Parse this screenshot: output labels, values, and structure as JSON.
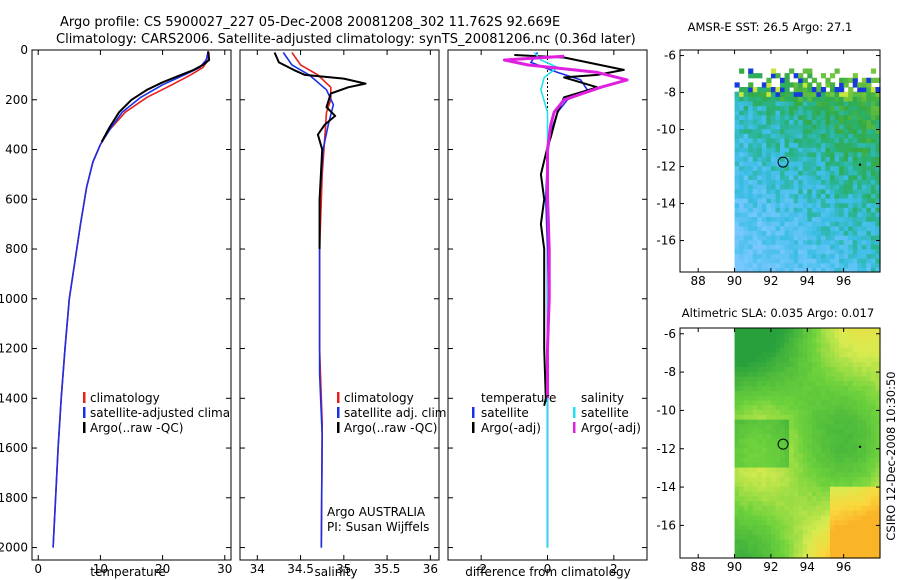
{
  "header": {
    "line1": "Argo profile: CS 5900027_227 05-Dec-2008 20081208_302 11.762S 92.669E",
    "line2": "Climatology: CARS2006. Satellite-adjusted climatology: synTS_20081206.nc (0.36d later)"
  },
  "colors": {
    "climatology": "#e8201c",
    "satellite": "#1c2fe8",
    "argo": "#000000",
    "salinity_satellite": "#22e0f0",
    "salinity_argo": "#e020e0"
  },
  "side_label": "CSIRO 12-Dec-2008 10:30:50",
  "chart_data": [
    {
      "type": "line",
      "id": "temperature",
      "xlabel": "temperature",
      "ylabel": "",
      "xlim": [
        -1,
        31
      ],
      "ylim": [
        2050,
        0
      ],
      "xticks": [
        0,
        10,
        20,
        30
      ],
      "yticks": [
        0,
        200,
        400,
        600,
        800,
        1000,
        1200,
        1400,
        1600,
        1800,
        2000
      ],
      "legend": [
        "climatology",
        "satellite-adjusted climatology",
        "Argo(..raw -QC)"
      ],
      "legend_position": "bottom-right",
      "series": [
        {
          "name": "climatology",
          "color_key": "climatology",
          "points": [
            [
              27.5,
              10
            ],
            [
              27.3,
              40
            ],
            [
              26.5,
              70
            ],
            [
              24.5,
              100
            ],
            [
              21.5,
              140
            ],
            [
              17.5,
              190
            ],
            [
              14,
              250
            ],
            [
              11.5,
              320
            ],
            [
              10,
              380
            ],
            [
              8.8,
              450
            ],
            [
              7.8,
              550
            ],
            [
              6.8,
              700
            ],
            [
              5.9,
              850
            ],
            [
              5,
              1000
            ],
            [
              4.3,
              1200
            ],
            [
              3.7,
              1400
            ],
            [
              3.2,
              1600
            ],
            [
              2.8,
              1800
            ],
            [
              2.4,
              2000
            ]
          ]
        },
        {
          "name": "satellite-adjusted climatology",
          "color_key": "satellite",
          "points": [
            [
              27.3,
              10
            ],
            [
              27,
              40
            ],
            [
              26,
              70
            ],
            [
              23.5,
              100
            ],
            [
              20,
              140
            ],
            [
              16.5,
              190
            ],
            [
              13.5,
              250
            ],
            [
              11.5,
              320
            ],
            [
              10,
              380
            ],
            [
              8.8,
              450
            ],
            [
              7.8,
              550
            ],
            [
              6.8,
              700
            ],
            [
              5.9,
              850
            ],
            [
              5,
              1000
            ],
            [
              4.3,
              1200
            ],
            [
              3.7,
              1400
            ],
            [
              3.2,
              1600
            ],
            [
              2.8,
              1800
            ],
            [
              2.4,
              2000
            ]
          ]
        },
        {
          "name": "Argo(..raw -QC)",
          "color_key": "argo",
          "points": [
            [
              27.3,
              5
            ],
            [
              27.4,
              20
            ],
            [
              27.5,
              40
            ],
            [
              26.5,
              60
            ],
            [
              25,
              80
            ],
            [
              22.5,
              105
            ],
            [
              20,
              130
            ],
            [
              17.5,
              160
            ],
            [
              15,
              200
            ],
            [
              13,
              250
            ],
            [
              11.5,
              310
            ],
            [
              10.2,
              370
            ]
          ]
        }
      ]
    },
    {
      "type": "line",
      "id": "salinity",
      "xlabel": "salinity",
      "ylabel": "",
      "xlim": [
        33.8,
        36.1
      ],
      "ylim": [
        2050,
        0
      ],
      "xticks": [
        34,
        34.5,
        35,
        35.5,
        36
      ],
      "legend": [
        "climatology",
        "satellite adj. clim.",
        "Argo(..raw -QC)"
      ],
      "legend_position": "bottom-right",
      "annotations": [
        "Argo AUSTRALIA",
        "PI: Susan Wijffels"
      ],
      "series": [
        {
          "name": "climatology",
          "color_key": "climatology",
          "points": [
            [
              34.4,
              10
            ],
            [
              34.5,
              60
            ],
            [
              34.7,
              100
            ],
            [
              34.85,
              150
            ],
            [
              34.85,
              200
            ],
            [
              34.8,
              250
            ],
            [
              34.78,
              350
            ],
            [
              34.75,
              500
            ],
            [
              34.72,
              800
            ],
            [
              34.72,
              1200
            ],
            [
              34.75,
              1500
            ],
            [
              34.74,
              2000
            ]
          ]
        },
        {
          "name": "satellite adj. clim.",
          "color_key": "satellite",
          "points": [
            [
              34.3,
              10
            ],
            [
              34.4,
              60
            ],
            [
              34.6,
              100
            ],
            [
              34.8,
              160
            ],
            [
              34.88,
              220
            ],
            [
              34.82,
              300
            ],
            [
              34.76,
              400
            ],
            [
              34.72,
              600
            ],
            [
              34.72,
              1000
            ],
            [
              34.72,
              1300
            ],
            [
              34.75,
              1550
            ],
            [
              34.74,
              2000
            ]
          ]
        },
        {
          "name": "Argo(..raw -QC)",
          "color_key": "argo",
          "points": [
            [
              34.2,
              10
            ],
            [
              34.25,
              50
            ],
            [
              34.45,
              85
            ],
            [
              34.55,
              100
            ],
            [
              34.7,
              105
            ],
            [
              35,
              115
            ],
            [
              35.25,
              135
            ],
            [
              35.05,
              150
            ],
            [
              34.85,
              175
            ],
            [
              34.8,
              230
            ],
            [
              34.9,
              265
            ],
            [
              34.78,
              300
            ],
            [
              34.7,
              340
            ],
            [
              34.75,
              400
            ],
            [
              34.72,
              600
            ],
            [
              34.72,
              800
            ]
          ]
        }
      ]
    },
    {
      "type": "line",
      "id": "difference",
      "xlabel": "difference from climatology",
      "ylabel": "",
      "xlim": [
        -3,
        3
      ],
      "ylim": [
        2050,
        0
      ],
      "xticks": [
        -2,
        0,
        2
      ],
      "legend_temperature_header": "temperature",
      "legend_salinity_header": "salinity",
      "legend_temperature": [
        "satellite",
        "Argo(-adj)"
      ],
      "legend_salinity": [
        "satellite",
        "Argo(-adj)"
      ],
      "legend_position": "bottom-right",
      "series": [
        {
          "name": "temperature satellite",
          "color_key": "satellite",
          "points": [
            [
              -0.3,
              10
            ],
            [
              -0.5,
              50
            ],
            [
              0.3,
              90
            ],
            [
              1,
              120
            ],
            [
              1.2,
              160
            ],
            [
              0.6,
              200
            ],
            [
              0.3,
              250
            ],
            [
              0.1,
              330
            ],
            [
              0,
              420
            ],
            [
              -0.05,
              600
            ],
            [
              0,
              800
            ],
            [
              0,
              1000
            ],
            [
              0,
              1500
            ],
            [
              0,
              2000
            ]
          ]
        },
        {
          "name": "temperature Argo(-adj)",
          "color_key": "argo",
          "points": [
            [
              -1,
              20
            ],
            [
              0.5,
              30
            ],
            [
              2.3,
              80
            ],
            [
              1.5,
              100
            ],
            [
              0.5,
              110
            ],
            [
              1.5,
              150
            ],
            [
              0.5,
              190
            ],
            [
              0.3,
              250
            ],
            [
              0.2,
              300
            ],
            [
              0.1,
              350
            ],
            [
              0,
              390
            ],
            [
              -0.2,
              500
            ],
            [
              -0.1,
              600
            ],
            [
              -0.2,
              700
            ],
            [
              -0.1,
              800
            ],
            [
              -0.1,
              1000
            ],
            [
              -0.1,
              1200
            ],
            [
              -0.05,
              1400
            ],
            [
              -0.1,
              1430
            ]
          ]
        },
        {
          "name": "salinity satellite",
          "color_key": "salinity_satellite",
          "points": [
            [
              -0.4,
              10
            ],
            [
              -0.2,
              40
            ],
            [
              0.3,
              70
            ],
            [
              -0.1,
              110
            ],
            [
              -0.2,
              160
            ],
            [
              0,
              250
            ],
            [
              0,
              350
            ],
            [
              0,
              500
            ],
            [
              0.05,
              700
            ],
            [
              0,
              1000
            ],
            [
              0,
              1500
            ],
            [
              0,
              2000
            ]
          ]
        },
        {
          "name": "salinity Argo(-adj)",
          "color_key": "salinity_argo",
          "points": [
            [
              0.5,
              25
            ],
            [
              -1.3,
              40
            ],
            [
              -0.6,
              60
            ],
            [
              1.5,
              90
            ],
            [
              2.4,
              120
            ],
            [
              1.6,
              150
            ],
            [
              0.5,
              200
            ],
            [
              0.2,
              250
            ],
            [
              0.1,
              300
            ],
            [
              0,
              400
            ],
            [
              0,
              600
            ],
            [
              0.05,
              800
            ],
            [
              0.05,
              1000
            ],
            [
              0,
              1200
            ],
            [
              0,
              1400
            ]
          ]
        }
      ]
    },
    {
      "type": "heatmap",
      "id": "sst_map",
      "title": "AMSR-E SST: 26.5 Argo: 27.1",
      "xlim": [
        87,
        98
      ],
      "ylim": [
        -17.7,
        -5.7
      ],
      "xticks": [
        88,
        90,
        92,
        94,
        96
      ],
      "yticks": [
        -6,
        -8,
        -10,
        -12,
        -14,
        -16
      ],
      "argo_position": {
        "lon": 92.67,
        "lat": -11.76
      },
      "data_extent": {
        "lon": [
          90,
          98
        ],
        "lat": [
          -17.7,
          -6.8
        ]
      }
    },
    {
      "type": "heatmap",
      "id": "sla_map",
      "title": "Altimetric SLA: 0.035 Argo: 0.017",
      "xlim": [
        87,
        98
      ],
      "ylim": [
        -17.7,
        -5.7
      ],
      "xticks": [
        88,
        90,
        92,
        94,
        96
      ],
      "yticks": [
        -6,
        -8,
        -10,
        -12,
        -14,
        -16
      ],
      "argo_position": {
        "lon": 92.67,
        "lat": -11.76
      },
      "data_extent": {
        "lon": [
          90,
          98
        ],
        "lat": [
          -17.7,
          -5.7
        ]
      }
    }
  ]
}
